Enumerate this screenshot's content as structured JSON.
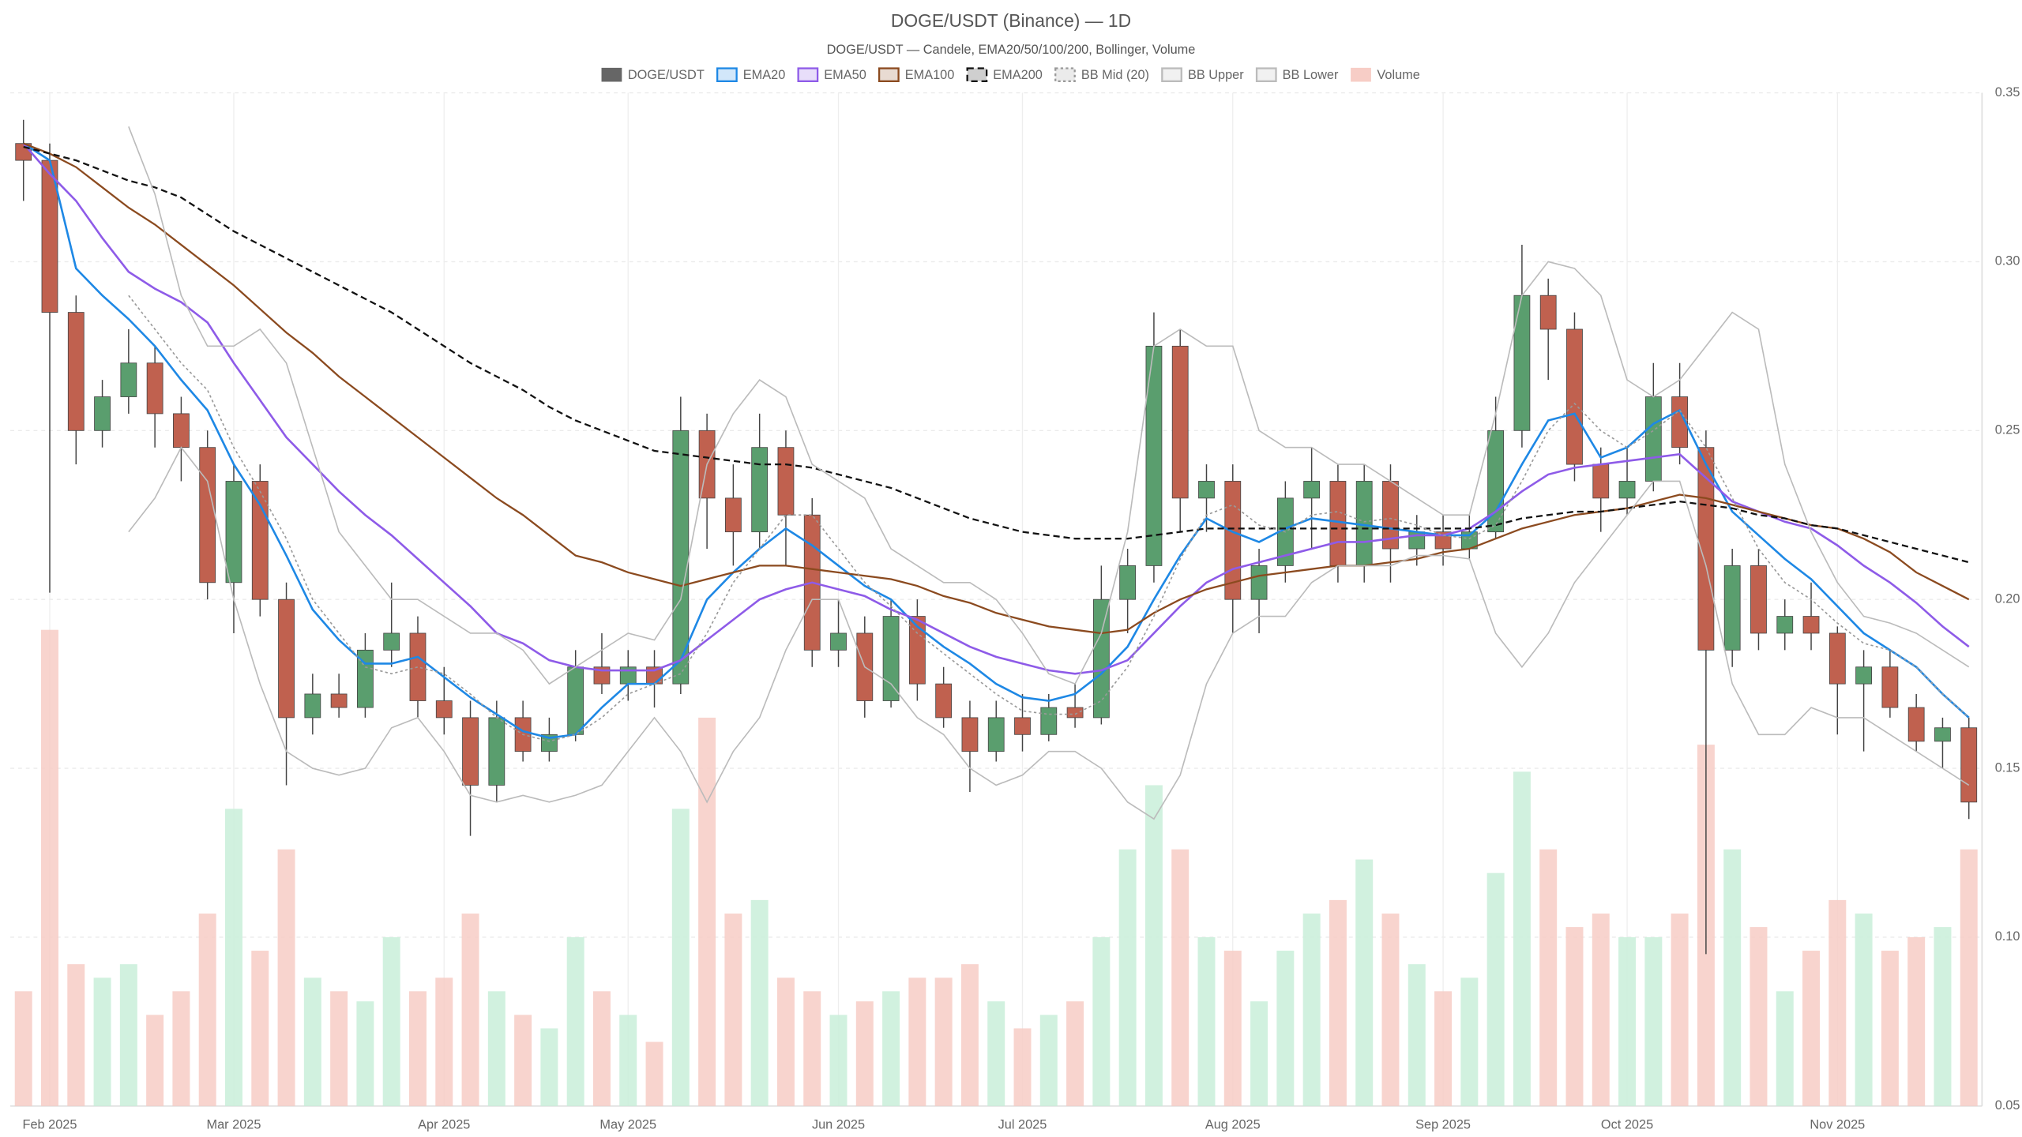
{
  "chart_data": {
    "type": "candlestick",
    "title": "DOGE/USDT (Binance) — 1D",
    "subtitle": "DOGE/USDT — Candele, EMA20/50/100/200, Bollinger, Volume",
    "grid": true,
    "legend": "top",
    "categories": [
      null,
      "Feb 2025",
      null,
      null,
      null,
      null,
      null,
      null,
      "Mar 2025",
      null,
      null,
      null,
      null,
      null,
      null,
      null,
      "Apr 2025",
      null,
      null,
      null,
      null,
      null,
      null,
      "May 2025",
      null,
      null,
      null,
      null,
      null,
      null,
      null,
      "Jun 2025",
      null,
      null,
      null,
      null,
      null,
      null,
      "Jul 2025",
      null,
      null,
      null,
      null,
      null,
      null,
      null,
      "Aug 2025",
      null,
      null,
      null,
      null,
      null,
      null,
      null,
      "Sep 2025",
      null,
      null,
      null,
      null,
      null,
      null,
      "Oct 2025",
      null,
      null,
      null,
      null,
      null,
      null,
      null,
      "Nov 2025",
      null,
      null,
      null,
      null,
      null
    ],
    "ylim": [
      0.05,
      0.35
    ],
    "yticks": [
      0.05,
      {
        "value": 0.1,
        "label": "0.10"
      },
      0.15,
      {
        "value": 0.2,
        "label": "0.20"
      },
      0.25,
      {
        "value": 0.3,
        "label": "0.30"
      },
      0.35
    ],
    "y2lim": [
      0,
      300
    ],
    "series": [
      {
        "name": "DOGE/USDT",
        "type": "candlestick",
        "color": "#666666",
        "up_color": "#5a9e6e",
        "down_color": "#c0614f",
        "open": [
          0.335,
          0.33,
          0.285,
          0.25,
          0.26,
          0.27,
          0.255,
          0.245,
          0.205,
          0.235,
          0.2,
          0.165,
          0.172,
          0.168,
          0.185,
          0.19,
          0.17,
          0.165,
          0.145,
          0.165,
          0.155,
          0.16,
          0.18,
          0.175,
          0.18,
          0.175,
          0.25,
          0.23,
          0.22,
          0.245,
          0.225,
          0.185,
          0.19,
          0.17,
          0.195,
          0.175,
          0.165,
          0.155,
          0.165,
          0.16,
          0.168,
          0.165,
          0.2,
          0.21,
          0.275,
          0.23,
          0.235,
          0.2,
          0.21,
          0.23,
          0.235,
          0.21,
          0.235,
          0.215,
          0.22,
          0.215,
          0.22,
          0.25,
          0.29,
          0.28,
          0.24,
          0.23,
          0.235,
          0.26,
          0.245,
          0.185,
          0.21,
          0.19,
          0.195,
          0.19,
          0.175,
          0.18,
          0.168,
          0.158,
          0.162
        ],
        "high": [
          0.342,
          0.335,
          0.29,
          0.265,
          0.28,
          0.275,
          0.26,
          0.25,
          0.24,
          0.24,
          0.205,
          0.178,
          0.178,
          0.19,
          0.205,
          0.195,
          0.18,
          0.17,
          0.17,
          0.17,
          0.165,
          0.185,
          0.19,
          0.185,
          0.185,
          0.26,
          0.255,
          0.24,
          0.255,
          0.25,
          0.23,
          0.2,
          0.195,
          0.2,
          0.2,
          0.18,
          0.17,
          0.17,
          0.172,
          0.172,
          0.175,
          0.21,
          0.215,
          0.285,
          0.28,
          0.24,
          0.24,
          0.215,
          0.235,
          0.245,
          0.24,
          0.24,
          0.24,
          0.225,
          0.225,
          0.225,
          0.26,
          0.305,
          0.295,
          0.285,
          0.245,
          0.245,
          0.27,
          0.27,
          0.25,
          0.215,
          0.215,
          0.2,
          0.205,
          0.192,
          0.185,
          0.185,
          0.172,
          0.165,
          0.165
        ],
        "low": [
          0.318,
          0.202,
          0.24,
          0.245,
          0.255,
          0.245,
          0.235,
          0.2,
          0.19,
          0.195,
          0.145,
          0.16,
          0.165,
          0.165,
          0.18,
          0.165,
          0.16,
          0.13,
          0.14,
          0.152,
          0.152,
          0.158,
          0.172,
          0.17,
          0.168,
          0.172,
          0.215,
          0.21,
          0.215,
          0.21,
          0.18,
          0.18,
          0.165,
          0.168,
          0.17,
          0.162,
          0.143,
          0.152,
          0.155,
          0.158,
          0.162,
          0.163,
          0.19,
          0.205,
          0.22,
          0.22,
          0.19,
          0.19,
          0.205,
          0.215,
          0.205,
          0.205,
          0.205,
          0.21,
          0.21,
          0.212,
          0.218,
          0.245,
          0.265,
          0.235,
          0.22,
          0.225,
          0.232,
          0.24,
          0.095,
          0.18,
          0.185,
          0.185,
          0.185,
          0.16,
          0.155,
          0.165,
          0.155,
          0.15,
          0.135
        ],
        "close": [
          0.33,
          0.285,
          0.25,
          0.26,
          0.27,
          0.255,
          0.245,
          0.205,
          0.235,
          0.2,
          0.165,
          0.172,
          0.168,
          0.185,
          0.19,
          0.17,
          0.165,
          0.145,
          0.165,
          0.155,
          0.16,
          0.18,
          0.175,
          0.18,
          0.175,
          0.25,
          0.23,
          0.22,
          0.245,
          0.225,
          0.185,
          0.19,
          0.17,
          0.195,
          0.175,
          0.165,
          0.155,
          0.165,
          0.16,
          0.168,
          0.165,
          0.2,
          0.21,
          0.275,
          0.23,
          0.235,
          0.2,
          0.21,
          0.23,
          0.235,
          0.21,
          0.235,
          0.215,
          0.22,
          0.215,
          0.22,
          0.25,
          0.29,
          0.28,
          0.24,
          0.23,
          0.235,
          0.26,
          0.245,
          0.185,
          0.21,
          0.19,
          0.195,
          0.19,
          0.175,
          0.18,
          0.168,
          0.158,
          0.162,
          0.14
        ]
      },
      {
        "name": "EMA20",
        "type": "line",
        "color": "#1e88e5",
        "width": 1.6,
        "values": [
          0.335,
          0.33,
          0.298,
          0.29,
          0.283,
          0.275,
          0.265,
          0.256,
          0.24,
          0.228,
          0.213,
          0.197,
          0.188,
          0.181,
          0.181,
          0.183,
          0.177,
          0.171,
          0.166,
          0.161,
          0.159,
          0.16,
          0.168,
          0.175,
          0.175,
          0.182,
          0.2,
          0.208,
          0.215,
          0.221,
          0.216,
          0.21,
          0.204,
          0.2,
          0.192,
          0.186,
          0.181,
          0.175,
          0.171,
          0.17,
          0.172,
          0.178,
          0.186,
          0.2,
          0.213,
          0.224,
          0.22,
          0.217,
          0.221,
          0.224,
          0.223,
          0.222,
          0.221,
          0.22,
          0.219,
          0.219,
          0.226,
          0.24,
          0.253,
          0.255,
          0.242,
          0.245,
          0.252,
          0.256,
          0.24,
          0.226,
          0.219,
          0.212,
          0.206,
          0.198,
          0.19,
          0.185,
          0.18,
          0.172,
          0.165
        ]
      },
      {
        "name": "EMA50",
        "type": "line",
        "color": "#8e5be8",
        "width": 1.6,
        "values": [
          0.335,
          0.326,
          0.318,
          0.307,
          0.297,
          0.292,
          0.288,
          0.282,
          0.27,
          0.259,
          0.248,
          0.24,
          0.232,
          0.225,
          0.219,
          0.212,
          0.205,
          0.198,
          0.19,
          0.187,
          0.182,
          0.18,
          0.179,
          0.179,
          0.179,
          0.182,
          0.188,
          0.194,
          0.2,
          0.203,
          0.205,
          0.203,
          0.201,
          0.197,
          0.194,
          0.19,
          0.186,
          0.183,
          0.181,
          0.179,
          0.178,
          0.179,
          0.182,
          0.19,
          0.198,
          0.205,
          0.209,
          0.211,
          0.213,
          0.215,
          0.217,
          0.217,
          0.218,
          0.219,
          0.219,
          0.221,
          0.226,
          0.232,
          0.237,
          0.239,
          0.24,
          0.241,
          0.242,
          0.243,
          0.236,
          0.229,
          0.226,
          0.223,
          0.221,
          0.216,
          0.21,
          0.205,
          0.199,
          0.192,
          0.186
        ]
      },
      {
        "name": "EMA100",
        "type": "line",
        "color": "#8b4a1f",
        "width": 1.4,
        "values": [
          0.335,
          0.332,
          0.328,
          0.322,
          0.316,
          0.311,
          0.305,
          0.299,
          0.293,
          0.286,
          0.279,
          0.273,
          0.266,
          0.26,
          0.254,
          0.248,
          0.242,
          0.236,
          0.23,
          0.225,
          0.219,
          0.213,
          0.211,
          0.208,
          0.206,
          0.204,
          0.206,
          0.208,
          0.21,
          0.21,
          0.209,
          0.208,
          0.207,
          0.206,
          0.204,
          0.201,
          0.199,
          0.196,
          0.194,
          0.192,
          0.191,
          0.19,
          0.191,
          0.196,
          0.2,
          0.203,
          0.205,
          0.207,
          0.208,
          0.209,
          0.21,
          0.21,
          0.211,
          0.212,
          0.214,
          0.215,
          0.218,
          0.221,
          0.223,
          0.225,
          0.226,
          0.227,
          0.229,
          0.231,
          0.23,
          0.228,
          0.226,
          0.224,
          0.222,
          0.221,
          0.218,
          0.214,
          0.208,
          0.204,
          0.2
        ]
      },
      {
        "name": "EMA200",
        "type": "line",
        "color": "#111111",
        "width": 1.4,
        "dash": "5 3",
        "values": [
          0.334,
          0.332,
          0.33,
          0.327,
          0.324,
          0.322,
          0.319,
          0.314,
          0.309,
          0.305,
          0.301,
          0.297,
          0.293,
          0.289,
          0.285,
          0.28,
          0.275,
          0.27,
          0.266,
          0.262,
          0.257,
          0.253,
          0.25,
          0.247,
          0.244,
          0.243,
          0.242,
          0.241,
          0.24,
          0.24,
          0.239,
          0.237,
          0.235,
          0.233,
          0.23,
          0.227,
          0.224,
          0.222,
          0.22,
          0.219,
          0.218,
          0.218,
          0.218,
          0.219,
          0.22,
          0.221,
          0.221,
          0.221,
          0.221,
          0.221,
          0.221,
          0.221,
          0.221,
          0.221,
          0.221,
          0.221,
          0.222,
          0.224,
          0.225,
          0.226,
          0.226,
          0.227,
          0.228,
          0.229,
          0.228,
          0.227,
          0.225,
          0.224,
          0.222,
          0.221,
          0.219,
          0.217,
          0.215,
          0.213,
          0.211
        ]
      },
      {
        "name": "BB Mid (20)",
        "type": "line",
        "color": "#999999",
        "width": 1,
        "dash": "2 2",
        "values": [
          null,
          null,
          null,
          null,
          0.29,
          0.28,
          0.27,
          0.262,
          0.245,
          0.232,
          0.218,
          0.2,
          0.19,
          0.18,
          0.178,
          0.18,
          0.178,
          0.172,
          0.165,
          0.16,
          0.158,
          0.16,
          0.165,
          0.172,
          0.175,
          0.178,
          0.19,
          0.205,
          0.215,
          0.225,
          0.225,
          0.215,
          0.205,
          0.198,
          0.19,
          0.184,
          0.178,
          0.172,
          0.167,
          0.166,
          0.166,
          0.17,
          0.18,
          0.195,
          0.212,
          0.225,
          0.228,
          0.222,
          0.22,
          0.225,
          0.226,
          0.223,
          0.224,
          0.222,
          0.219,
          0.218,
          0.222,
          0.235,
          0.25,
          0.258,
          0.25,
          0.245,
          0.25,
          0.256,
          0.245,
          0.23,
          0.215,
          0.205,
          0.2,
          0.193,
          0.187,
          0.185,
          0.18,
          0.172,
          0.165
        ]
      },
      {
        "name": "BB Upper",
        "type": "line",
        "color": "#bbbbbb",
        "width": 1,
        "values": [
          null,
          null,
          null,
          null,
          0.34,
          0.32,
          0.29,
          0.275,
          0.275,
          0.28,
          0.27,
          0.245,
          0.22,
          0.21,
          0.2,
          0.2,
          0.195,
          0.19,
          0.19,
          0.185,
          0.175,
          0.18,
          0.185,
          0.19,
          0.188,
          0.2,
          0.24,
          0.255,
          0.265,
          0.26,
          0.24,
          0.235,
          0.23,
          0.215,
          0.21,
          0.205,
          0.205,
          0.2,
          0.19,
          0.178,
          0.175,
          0.19,
          0.22,
          0.275,
          0.28,
          0.275,
          0.275,
          0.25,
          0.245,
          0.245,
          0.24,
          0.24,
          0.235,
          0.23,
          0.225,
          0.225,
          0.255,
          0.29,
          0.3,
          0.298,
          0.29,
          0.265,
          0.26,
          0.265,
          0.275,
          0.285,
          0.28,
          0.24,
          0.22,
          0.205,
          0.195,
          0.193,
          0.19,
          0.185,
          0.18
        ]
      },
      {
        "name": "BB Lower",
        "type": "line",
        "color": "#bbbbbb",
        "width": 1,
        "values": [
          null,
          null,
          null,
          null,
          0.22,
          0.23,
          0.245,
          0.235,
          0.2,
          0.175,
          0.155,
          0.15,
          0.148,
          0.15,
          0.162,
          0.165,
          0.155,
          0.142,
          0.14,
          0.142,
          0.14,
          0.142,
          0.145,
          0.155,
          0.165,
          0.155,
          0.14,
          0.155,
          0.165,
          0.185,
          0.2,
          0.2,
          0.18,
          0.175,
          0.165,
          0.16,
          0.15,
          0.145,
          0.148,
          0.155,
          0.155,
          0.15,
          0.14,
          0.135,
          0.148,
          0.175,
          0.19,
          0.195,
          0.195,
          0.205,
          0.21,
          0.21,
          0.21,
          0.213,
          0.213,
          0.212,
          0.19,
          0.18,
          0.19,
          0.205,
          0.215,
          0.225,
          0.235,
          0.235,
          0.21,
          0.175,
          0.16,
          0.16,
          0.168,
          0.165,
          0.165,
          0.16,
          0.155,
          0.15,
          0.145
        ]
      },
      {
        "name": "Volume",
        "type": "bar",
        "axis": "y2",
        "color": "#f7cdc6",
        "up_color": "#c9eed9",
        "down_color": "#f7cdc6",
        "values": [
          34,
          141,
          42,
          38,
          42,
          27,
          34,
          57,
          88,
          46,
          76,
          38,
          34,
          31,
          50,
          34,
          38,
          57,
          34,
          27,
          23,
          50,
          34,
          27,
          19,
          88,
          115,
          57,
          61,
          38,
          34,
          27,
          31,
          34,
          38,
          38,
          42,
          31,
          23,
          27,
          31,
          50,
          76,
          95,
          76,
          50,
          46,
          31,
          46,
          57,
          61,
          73,
          57,
          42,
          34,
          38,
          69,
          99,
          76,
          53,
          57,
          50,
          50,
          57,
          107,
          76,
          53,
          34,
          46,
          61,
          57,
          46,
          50,
          53,
          76
        ]
      }
    ]
  }
}
